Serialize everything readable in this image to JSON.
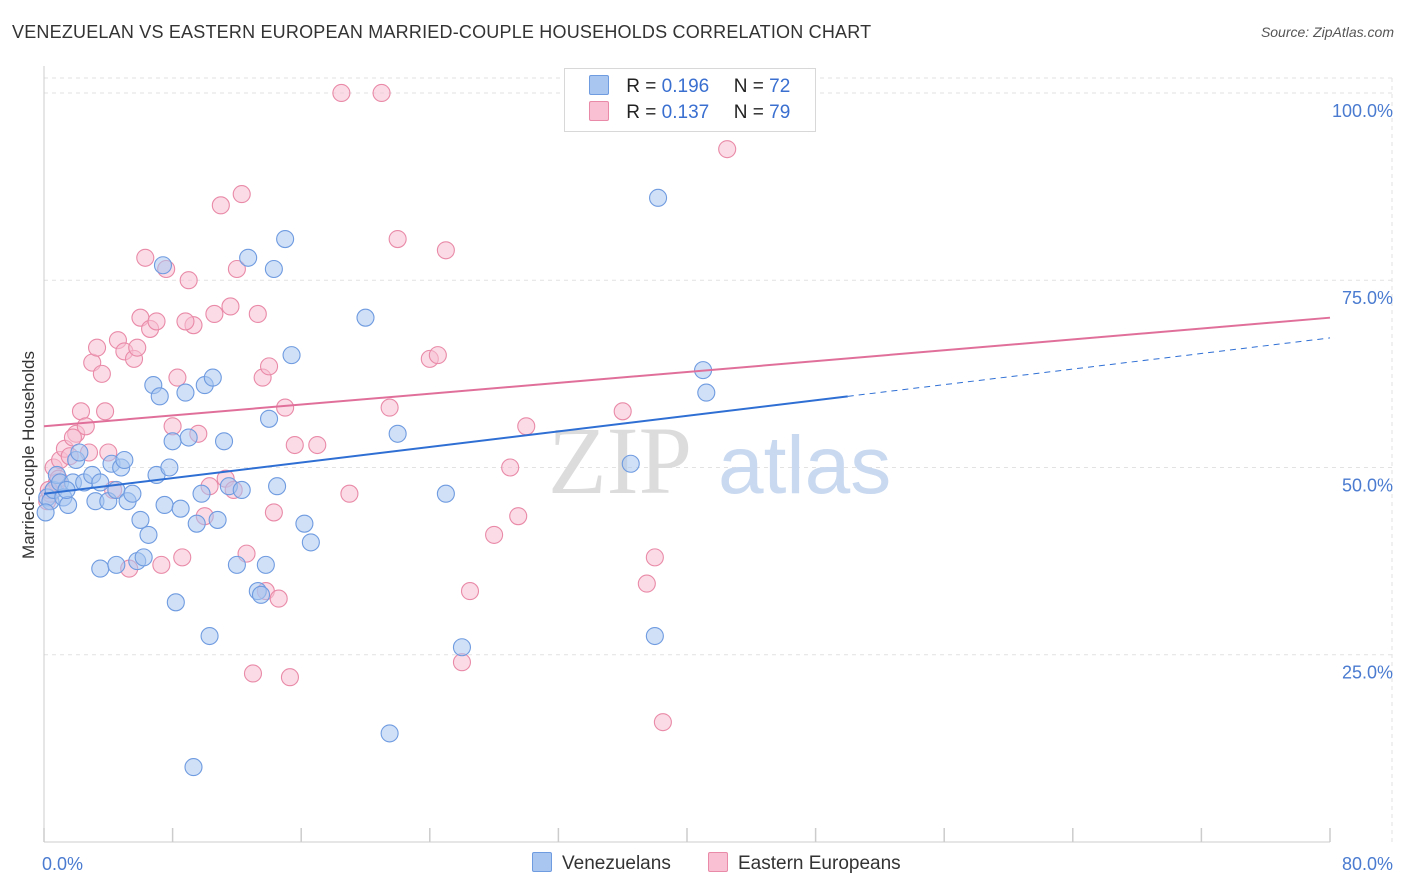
{
  "title": "VENEZUELAN VS EASTERN EUROPEAN MARRIED-COUPLE HOUSEHOLDS CORRELATION CHART",
  "source": "Source: ZipAtlas.com",
  "watermark": {
    "zip": "ZIP",
    "atlas": "atlas"
  },
  "legend": {
    "rows": [
      {
        "r_label": "R =",
        "r_value": "0.196",
        "n_label": "N =",
        "n_value": "72",
        "color": "#a8c6f0",
        "border": "#6f9be0"
      },
      {
        "r_label": "R =",
        "r_value": "0.137",
        "n_label": "N =",
        "n_value": "79",
        "color": "#f8c0d2",
        "border": "#e98aa8"
      }
    ]
  },
  "bottom_legend": [
    {
      "label": "Venezuelans",
      "color": "#a8c6f0",
      "border": "#6f9be0"
    },
    {
      "label": "Eastern Europeans",
      "color": "#f8c0d2",
      "border": "#e98aa8"
    }
  ],
  "chart_data": {
    "type": "scatter",
    "title": "VENEZUELAN VS EASTERN EUROPEAN MARRIED-COUPLE HOUSEHOLDS CORRELATION CHART",
    "xlabel": "",
    "ylabel": "Married-couple Households",
    "xlim": [
      0,
      80
    ],
    "ylim": [
      0,
      102
    ],
    "x_tick_labels": [
      "0.0%",
      "80.0%"
    ],
    "y_ticks": [
      25,
      50,
      75,
      100
    ],
    "y_tick_labels": [
      "25.0%",
      "50.0%",
      "75.0%",
      "100.0%"
    ],
    "grid": true,
    "series": [
      {
        "name": "Venezuelans",
        "color": "#6f9be0",
        "fill": "#a8c6f0",
        "trend": {
          "x0": 0,
          "y0": 46.5,
          "x1": 50,
          "y1": 59.5,
          "dashed_to_x": 80,
          "dashed_to_y": 67.3,
          "color": "#2f6fd4"
        },
        "points": [
          [
            0.2,
            46
          ],
          [
            0.4,
            45.5
          ],
          [
            0.6,
            47
          ],
          [
            0.8,
            49
          ],
          [
            1,
            48
          ],
          [
            1.2,
            46
          ],
          [
            1.5,
            45
          ],
          [
            1.8,
            48
          ],
          [
            2,
            51
          ],
          [
            2.2,
            52
          ],
          [
            2.5,
            48
          ],
          [
            3,
            49
          ],
          [
            3.2,
            45.5
          ],
          [
            3.5,
            48
          ],
          [
            4,
            45.5
          ],
          [
            4.2,
            50.5
          ],
          [
            4.5,
            47
          ],
          [
            4.8,
            50
          ],
          [
            5,
            51
          ],
          [
            5.2,
            45.5
          ],
          [
            5.5,
            46.5
          ],
          [
            5.8,
            37.5
          ],
          [
            6,
            43
          ],
          [
            6.2,
            38
          ],
          [
            6.5,
            41
          ],
          [
            6.8,
            61
          ],
          [
            7,
            49
          ],
          [
            7.2,
            59.5
          ],
          [
            7.5,
            45
          ],
          [
            7.8,
            50
          ],
          [
            8,
            53.5
          ],
          [
            8.2,
            32
          ],
          [
            8.5,
            44.5
          ],
          [
            8.8,
            60
          ],
          [
            9,
            54
          ],
          [
            9.5,
            42.5
          ],
          [
            9.8,
            46.5
          ],
          [
            10,
            61
          ],
          [
            10.3,
            27.5
          ],
          [
            10.8,
            43
          ],
          [
            11.2,
            53.5
          ],
          [
            11.5,
            47.5
          ],
          [
            12,
            37
          ],
          [
            12.3,
            47
          ],
          [
            12.7,
            78
          ],
          [
            13.3,
            33.5
          ],
          [
            13.5,
            33
          ],
          [
            13.8,
            37
          ],
          [
            14,
            56.5
          ],
          [
            14.3,
            76.5
          ],
          [
            15,
            80.5
          ],
          [
            15.4,
            65
          ],
          [
            16.6,
            40
          ],
          [
            16.2,
            42.5
          ],
          [
            20,
            70
          ],
          [
            22,
            54.5
          ],
          [
            25,
            46.5
          ],
          [
            26,
            26
          ],
          [
            36.5,
            50.5
          ],
          [
            38,
            27.5
          ],
          [
            38.2,
            86
          ],
          [
            41,
            63
          ],
          [
            41.2,
            60
          ],
          [
            14.5,
            47.5
          ],
          [
            9.3,
            10
          ],
          [
            21.5,
            14.5
          ],
          [
            3.5,
            36.5
          ],
          [
            4.5,
            37
          ],
          [
            7.4,
            77
          ],
          [
            10.5,
            62
          ],
          [
            0.1,
            44
          ],
          [
            1.4,
            47
          ]
        ]
      },
      {
        "name": "Eastern Europeans",
        "color": "#e98aa8",
        "fill": "#f8c0d2",
        "trend": {
          "x0": 0,
          "y0": 55.5,
          "x1": 80,
          "y1": 70,
          "color": "#e0709a"
        },
        "points": [
          [
            0.2,
            45.5
          ],
          [
            0.4,
            46.5
          ],
          [
            0.6,
            50
          ],
          [
            0.8,
            48
          ],
          [
            1,
            51
          ],
          [
            1.3,
            52.5
          ],
          [
            1.6,
            51.5
          ],
          [
            2,
            54.5
          ],
          [
            2.3,
            57.5
          ],
          [
            2.6,
            55.5
          ],
          [
            3,
            64
          ],
          [
            3.3,
            66
          ],
          [
            3.6,
            62.5
          ],
          [
            4,
            52
          ],
          [
            4.3,
            47
          ],
          [
            4.6,
            67
          ],
          [
            5,
            65.5
          ],
          [
            5.3,
            36.5
          ],
          [
            5.6,
            64.5
          ],
          [
            6,
            70
          ],
          [
            6.3,
            78
          ],
          [
            6.6,
            68.5
          ],
          [
            7,
            69.5
          ],
          [
            7.3,
            37
          ],
          [
            7.6,
            76.5
          ],
          [
            8,
            55.5
          ],
          [
            8.3,
            62
          ],
          [
            8.6,
            38
          ],
          [
            9,
            75
          ],
          [
            9.3,
            69
          ],
          [
            9.6,
            54.5
          ],
          [
            10,
            43.5
          ],
          [
            10.3,
            47.5
          ],
          [
            10.6,
            70.5
          ],
          [
            11,
            85
          ],
          [
            11.3,
            48.5
          ],
          [
            11.6,
            71.5
          ],
          [
            12,
            76.5
          ],
          [
            12.3,
            86.5
          ],
          [
            12.6,
            38.5
          ],
          [
            13,
            22.5
          ],
          [
            13.3,
            70.5
          ],
          [
            13.6,
            62
          ],
          [
            13.8,
            33.5
          ],
          [
            14,
            63.5
          ],
          [
            14.3,
            44
          ],
          [
            14.6,
            32.5
          ],
          [
            15,
            58
          ],
          [
            15.3,
            22
          ],
          [
            15.6,
            53
          ],
          [
            17,
            53
          ],
          [
            18.5,
            100
          ],
          [
            19,
            46.5
          ],
          [
            21,
            100
          ],
          [
            21.5,
            58
          ],
          [
            22,
            80.5
          ],
          [
            24,
            64.5
          ],
          [
            24.5,
            65
          ],
          [
            25,
            79
          ],
          [
            26,
            24
          ],
          [
            26.5,
            33.5
          ],
          [
            28,
            41
          ],
          [
            29,
            50
          ],
          [
            29.5,
            43.5
          ],
          [
            30,
            55.5
          ],
          [
            36,
            57.5
          ],
          [
            37.5,
            34.5
          ],
          [
            38,
            38
          ],
          [
            38.5,
            16
          ],
          [
            42,
            100
          ],
          [
            42.5,
            92.5
          ],
          [
            3.8,
            57.5
          ],
          [
            1.8,
            54
          ],
          [
            0.9,
            48.5
          ],
          [
            2.8,
            52
          ],
          [
            5.8,
            66
          ],
          [
            8.8,
            69.5
          ],
          [
            11.8,
            47
          ],
          [
            0.3,
            47
          ]
        ]
      }
    ]
  }
}
